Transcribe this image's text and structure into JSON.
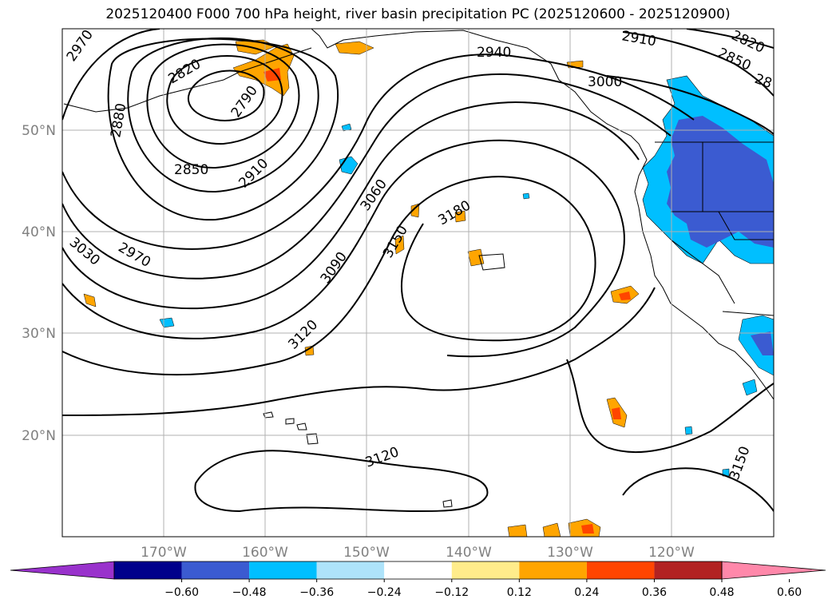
{
  "title": "2025120400 F000 700 hPa height, river basin precipitation PC (2025120600 - 2025120900)",
  "map": {
    "lat_labels": [
      "50°N",
      "40°N",
      "30°N",
      "20°N"
    ],
    "lon_labels": [
      "170°W",
      "160°W",
      "150°W",
      "140°W",
      "130°W",
      "120°W"
    ],
    "contour_labels": [
      "2970",
      "2820",
      "2880",
      "2790",
      "2850",
      "2910",
      "2970",
      "3030",
      "3060",
      "3090",
      "3120",
      "3150",
      "3180",
      "2940",
      "2910",
      "3000",
      "2820",
      "2850",
      "28",
      "3120",
      "3150"
    ],
    "contour_color": "#000000",
    "grid_color": "#b0b0b0"
  },
  "colorbar": {
    "colors": [
      "#9932cc",
      "#00008b",
      "#3b5bd1",
      "#00bfff",
      "#aee3fa",
      "#ffffff",
      "#ffec8b",
      "#ffa500",
      "#ff4500",
      "#b22222",
      "#ff88aa"
    ],
    "tick_labels": [
      "−0.60",
      "−0.48",
      "−0.36",
      "−0.24",
      "−0.12",
      "0.12",
      "0.24",
      "0.36",
      "0.48",
      "0.60"
    ]
  }
}
